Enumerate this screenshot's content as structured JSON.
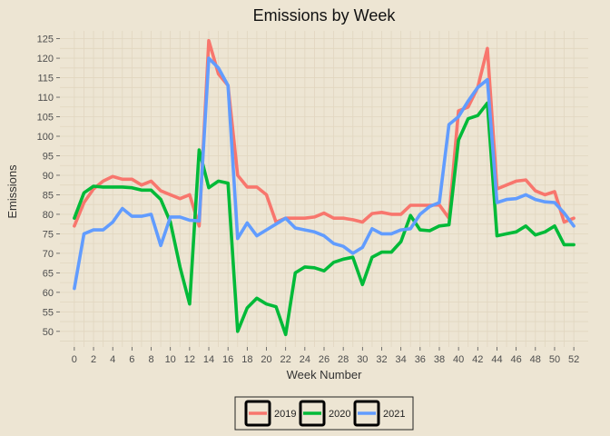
{
  "chart_data": {
    "type": "line",
    "title": "Emissions by Week",
    "xlabel": "Week Number",
    "ylabel": "Emissions",
    "xlim": [
      -1.5,
      53.5
    ],
    "ylim": [
      46,
      127
    ],
    "x_ticks": [
      0,
      2,
      4,
      6,
      8,
      10,
      12,
      14,
      16,
      18,
      20,
      22,
      24,
      26,
      28,
      30,
      32,
      34,
      36,
      38,
      40,
      42,
      44,
      46,
      48,
      50,
      52
    ],
    "y_ticks": [
      50,
      55,
      60,
      65,
      70,
      75,
      80,
      85,
      90,
      95,
      100,
      105,
      110,
      115,
      120,
      125
    ],
    "grid": true,
    "legend_position": "bottom",
    "x": [
      0,
      1,
      2,
      3,
      4,
      5,
      6,
      7,
      8,
      9,
      10,
      11,
      12,
      13,
      14,
      15,
      16,
      17,
      18,
      19,
      20,
      21,
      22,
      23,
      24,
      25,
      26,
      27,
      28,
      29,
      30,
      31,
      32,
      33,
      34,
      35,
      36,
      37,
      38,
      39,
      40,
      41,
      42,
      43,
      44,
      45,
      46,
      47,
      48,
      49,
      50,
      51,
      52
    ],
    "series": [
      {
        "name": "2019",
        "color": "#F8766D",
        "values": [
          77,
          83,
          86.5,
          88.5,
          89.7,
          89,
          89,
          87.5,
          88.5,
          86,
          85,
          84,
          85,
          77,
          124.5,
          116,
          113,
          90,
          87,
          87,
          85,
          78,
          79,
          79,
          79,
          79.3,
          80.3,
          79,
          79,
          78.6,
          78,
          80.2,
          80.5,
          80,
          80,
          82.3,
          82.3,
          82.3,
          82.4,
          79,
          106.5,
          107.5,
          112.5,
          122.5,
          86.5,
          87.5,
          88.5,
          88.8,
          86,
          85,
          85.8,
          78,
          79
        ]
      },
      {
        "name": "2020",
        "color": "#00BA38",
        "values": [
          79,
          85.5,
          87.2,
          87,
          87,
          87,
          86.8,
          86.2,
          86.2,
          83.8,
          78,
          66.5,
          57,
          96.5,
          86.8,
          88.5,
          88,
          50,
          56,
          58.5,
          57,
          56.3,
          49.2,
          65,
          66.5,
          66.3,
          65.5,
          67.7,
          68.5,
          69,
          62,
          69,
          70.3,
          70.3,
          73,
          79.7,
          76,
          75.8,
          77,
          77.3,
          99,
          104.5,
          105.3,
          108.5,
          74.5,
          75,
          75.5,
          77,
          74.7,
          75.5,
          77,
          72.2,
          72.2
        ]
      },
      {
        "name": "2021",
        "color": "#619CFF",
        "values": [
          61,
          75,
          76,
          76,
          78,
          81.5,
          79.5,
          79.5,
          80,
          72,
          79.3,
          79.3,
          78.5,
          78.3,
          120,
          117.5,
          113,
          73.8,
          77.8,
          74.5,
          76,
          77.5,
          79,
          76.5,
          76,
          75.5,
          74.5,
          72.5,
          71.8,
          70,
          71.5,
          76.3,
          75,
          75,
          76,
          76.3,
          80,
          82,
          83,
          103,
          105,
          109,
          112.5,
          114.5,
          83,
          83.8,
          84,
          85,
          83.8,
          83.2,
          83,
          80.3,
          77
        ]
      }
    ]
  }
}
